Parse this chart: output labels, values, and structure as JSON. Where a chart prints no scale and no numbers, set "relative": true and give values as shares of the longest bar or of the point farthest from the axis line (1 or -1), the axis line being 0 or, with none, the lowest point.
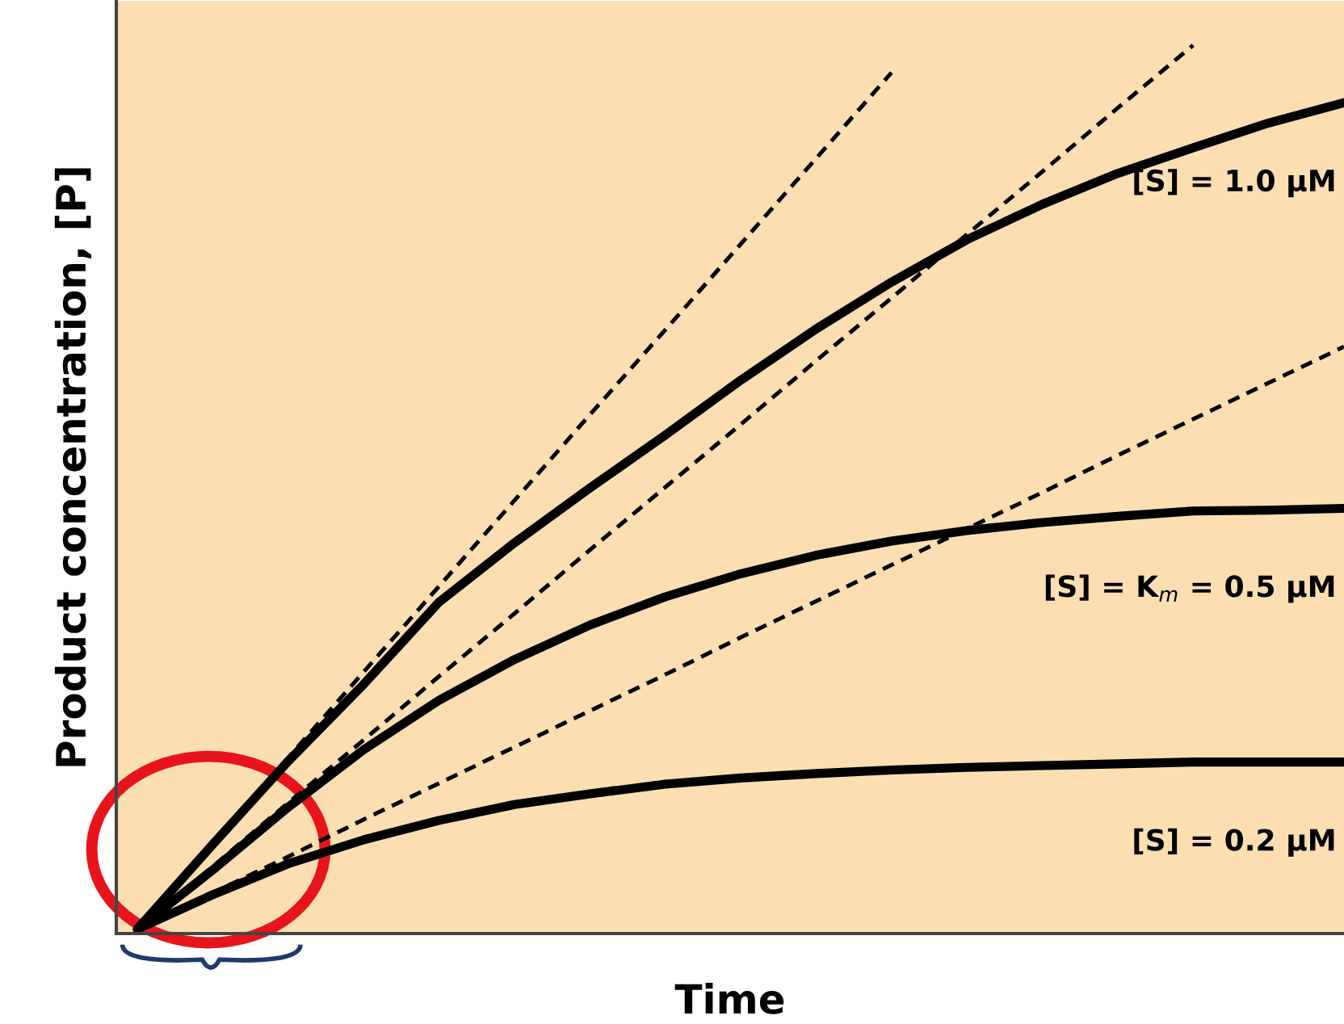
{
  "chart_data": {
    "type": "line",
    "relative": true,
    "xlabel": "Time",
    "ylabel": "Product concentration, [P]",
    "legend": false,
    "marker": "none",
    "categories": [
      null,
      null,
      null,
      null,
      null,
      null,
      null,
      null,
      null,
      null,
      null,
      null,
      null,
      null,
      null,
      null,
      null
    ],
    "series": [
      {
        "name": "[S] = 1.0 μM",
        "color": "#000000",
        "line_style": "solid",
        "values": [
          0,
          0.096,
          0.19,
          0.277,
          0.37,
          0.437,
          0.499,
          0.559,
          0.621,
          0.679,
          0.732,
          0.78,
          0.82,
          0.855,
          0.884,
          0.912,
          0.935
        ]
      },
      {
        "name": "[S] = K$_{m}$ = 0.5 μM",
        "color": "#000000",
        "line_style": "solid",
        "values": [
          0,
          0.067,
          0.138,
          0.203,
          0.259,
          0.305,
          0.344,
          0.376,
          0.402,
          0.423,
          0.439,
          0.451,
          0.46,
          0.467,
          0.473,
          0.474,
          0.476
        ]
      },
      {
        "name": "[S] = 0.2 μM",
        "color": "#000000",
        "line_style": "solid",
        "values": [
          0,
          0.039,
          0.074,
          0.101,
          0.123,
          0.141,
          0.153,
          0.164,
          0.171,
          0.176,
          0.18,
          0.183,
          0.185,
          0.187,
          0.189,
          0.189,
          0.189
        ]
      },
      {
        "color": "#000000",
        "line_style": "dashed",
        "values": [
          0,
          0.097,
          0.194,
          0.291,
          0.388,
          0.485,
          0.582,
          0.678,
          0.775,
          0.872,
          0.969,
          null,
          null,
          null,
          null,
          null,
          null
        ]
      },
      {
        "color": "#000000",
        "line_style": "dashed",
        "values": [
          0,
          0.071,
          0.143,
          0.214,
          0.286,
          0.357,
          0.429,
          0.5,
          0.571,
          0.643,
          0.714,
          0.786,
          0.857,
          0.929,
          1.0,
          null,
          null
        ]
      },
      {
        "color": "#000000",
        "line_style": "dashed",
        "values": [
          0,
          0.041,
          0.082,
          0.124,
          0.165,
          0.206,
          0.247,
          0.288,
          0.33,
          0.371,
          0.412,
          0.453,
          0.494,
          0.536,
          0.577,
          0.618,
          0.659
        ]
      }
    ]
  }
}
